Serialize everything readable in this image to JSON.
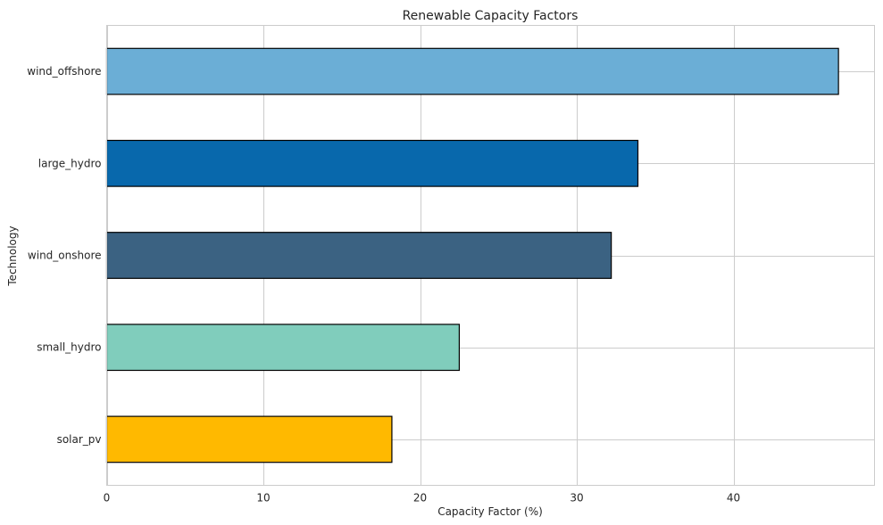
{
  "chart_data": {
    "type": "bar",
    "orientation": "horizontal",
    "title": "Renewable Capacity Factors",
    "xlabel": "Capacity Factor (%)",
    "ylabel": "Technology",
    "categories": [
      "solar_pv",
      "small_hydro",
      "wind_onshore",
      "large_hydro",
      "wind_offshore"
    ],
    "values": [
      18.2,
      22.5,
      32.2,
      33.9,
      46.7
    ],
    "colors": [
      "#FFB900",
      "#80CDBC",
      "#3B6282",
      "#0868AC",
      "#6BAED6"
    ],
    "xlim": [
      0,
      49
    ],
    "xticks": [
      0,
      10,
      20,
      30,
      40
    ],
    "grid": true,
    "legend": false
  }
}
